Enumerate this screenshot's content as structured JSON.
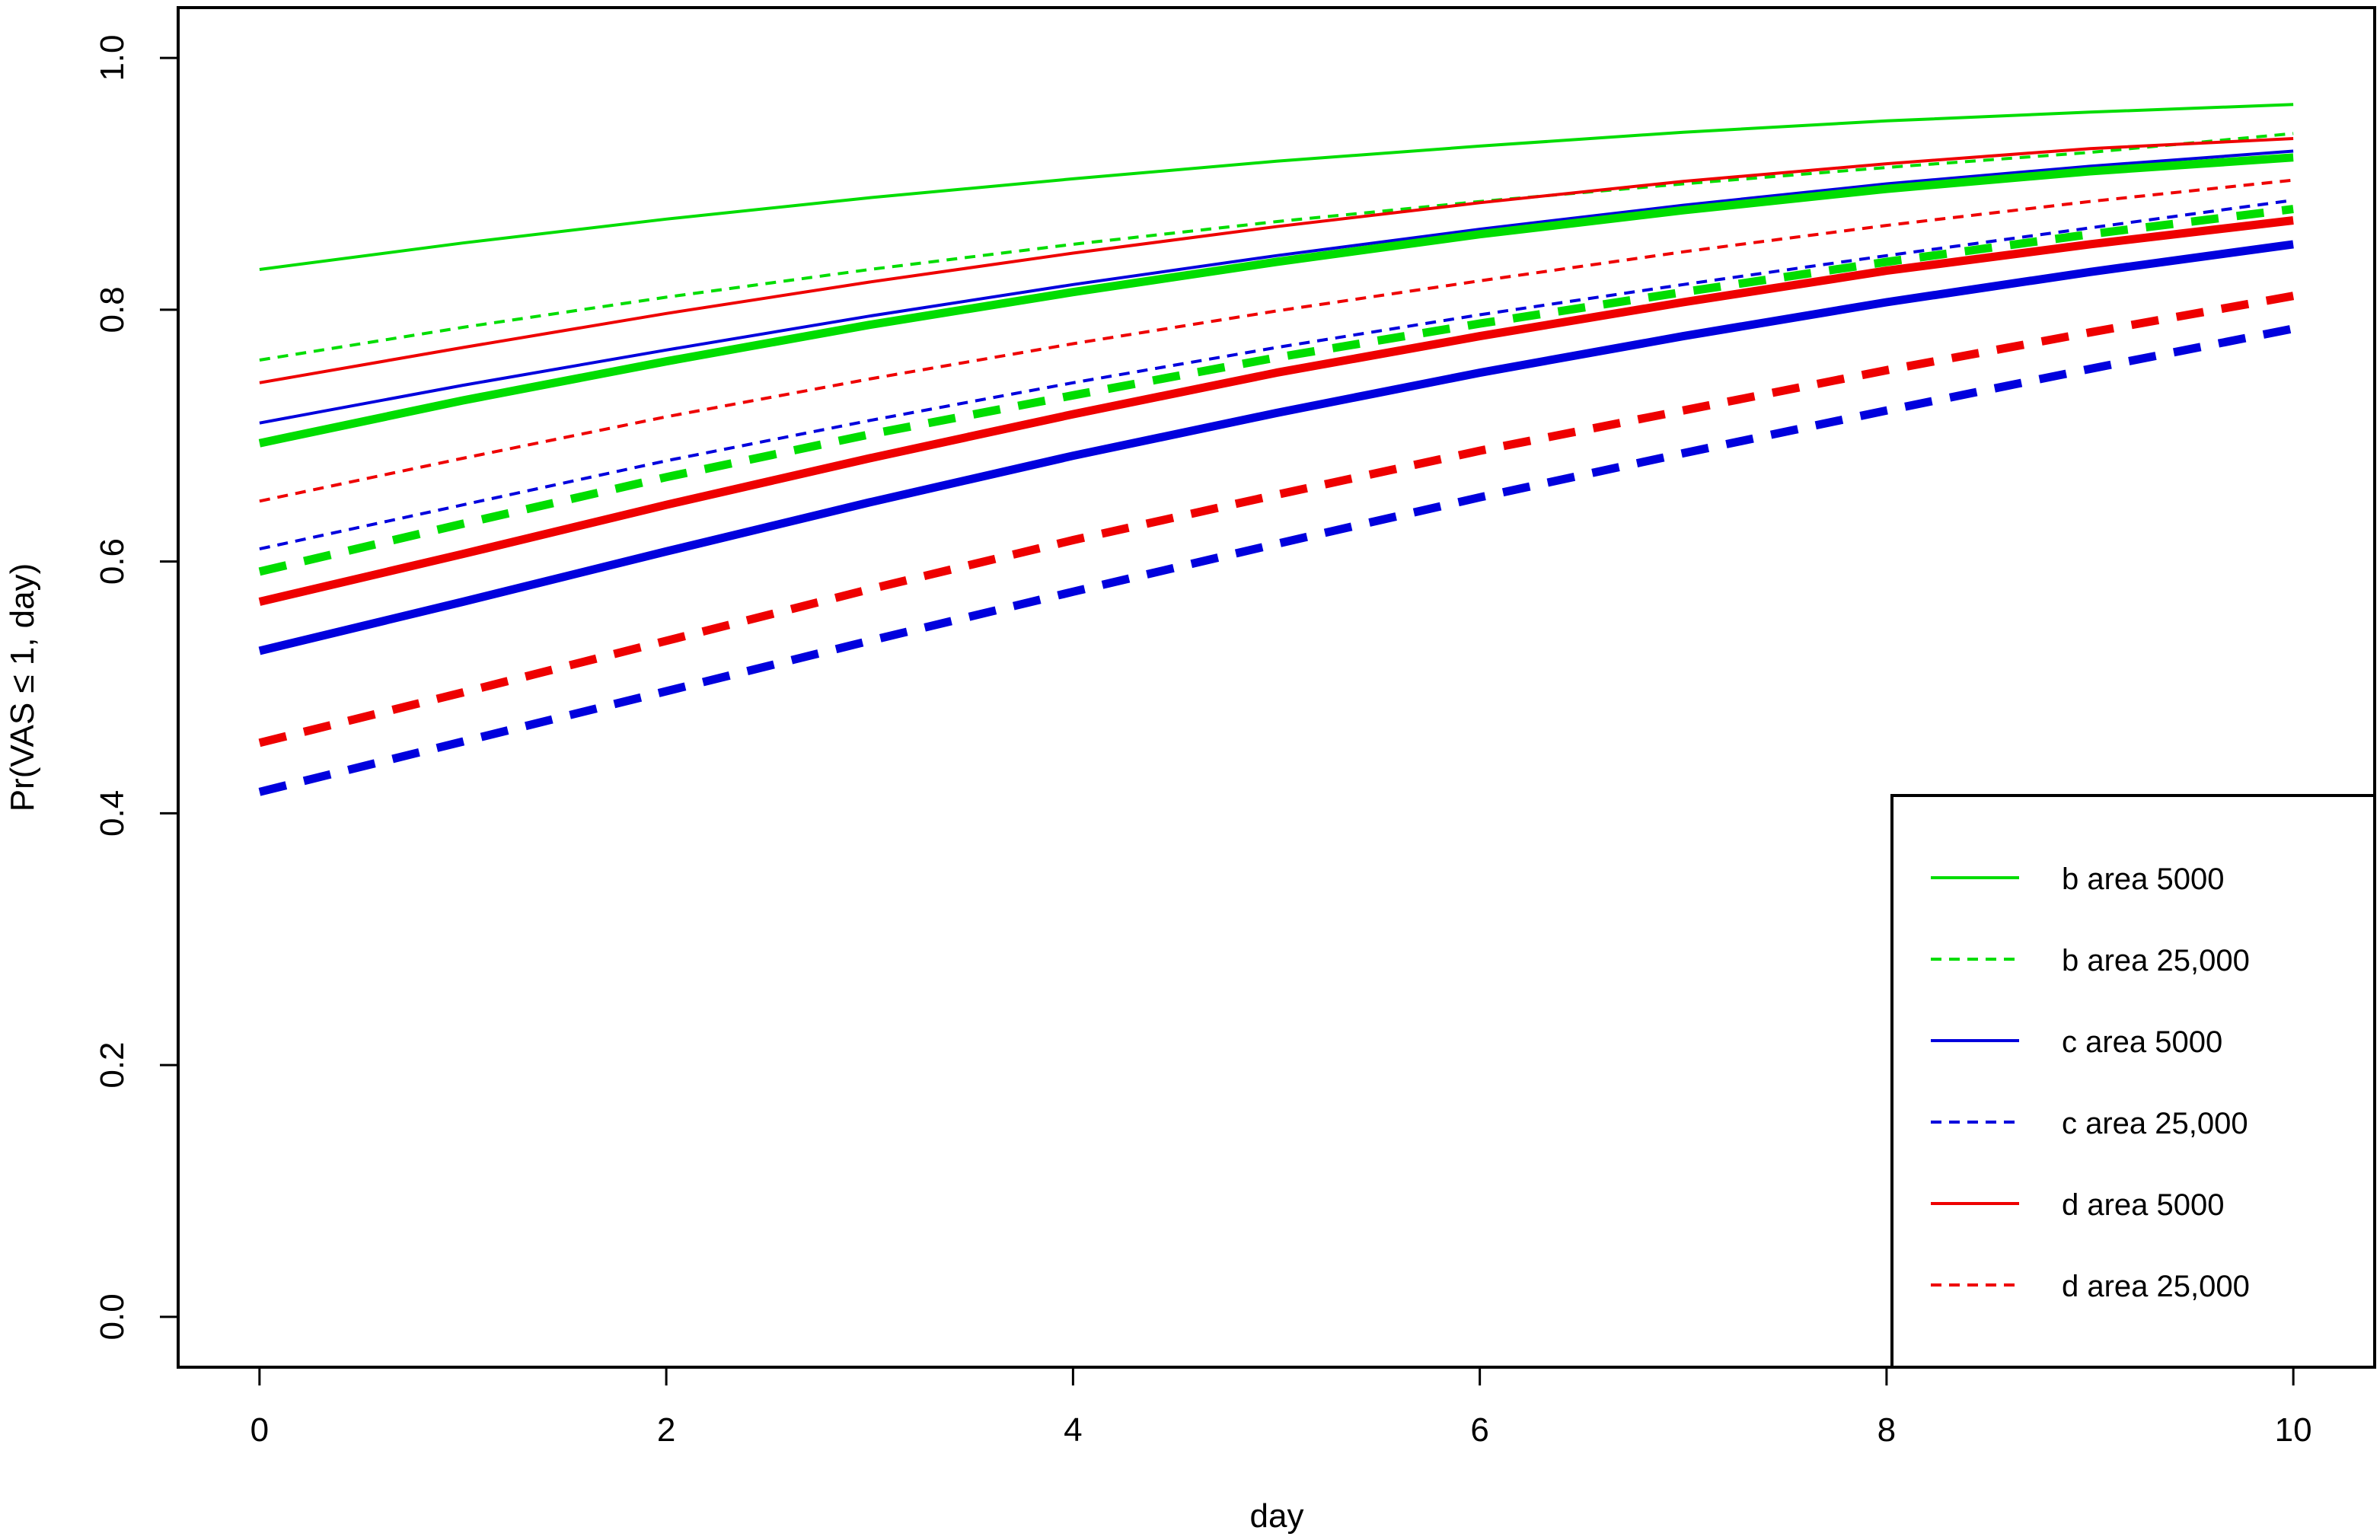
{
  "chart_data": {
    "type": "line",
    "title": "",
    "xlabel": "day",
    "ylabel": "Pr(VAS ≤ 1, day)",
    "xlim": [
      -0.4,
      10.4
    ],
    "ylim": [
      -0.04,
      1.04
    ],
    "x_ticks": [
      0,
      2,
      4,
      6,
      8,
      10
    ],
    "x_tick_labels": [
      "0",
      "2",
      "4",
      "6",
      "8",
      "10"
    ],
    "y_ticks": [
      0.0,
      0.2,
      0.4,
      0.6,
      0.8,
      1.0
    ],
    "y_tick_labels": [
      "0.0",
      "0.2",
      "0.4",
      "0.6",
      "0.8",
      "1.0"
    ],
    "grid": false,
    "legend_position": "bottom-right",
    "x": [
      0,
      1,
      2,
      3,
      4,
      5,
      6,
      7,
      8,
      9,
      10
    ],
    "legend": [
      {
        "label": "b area 5000",
        "color": "#00dd00",
        "dash": "solid"
      },
      {
        "label": "b area 25,000",
        "color": "#00dd00",
        "dash": "dashed"
      },
      {
        "label": "c area 5000",
        "color": "#0000dd",
        "dash": "solid"
      },
      {
        "label": "c area 25,000",
        "color": "#0000dd",
        "dash": "dashed"
      },
      {
        "label": "d area 5000",
        "color": "#ee0000",
        "dash": "solid"
      },
      {
        "label": "d area 25,000",
        "color": "#ee0000",
        "dash": "dashed"
      }
    ],
    "series": [
      {
        "color": "#00dd00",
        "dash": "solid",
        "weight": "thin",
        "values": [
          0.832,
          0.853,
          0.872,
          0.889,
          0.904,
          0.918,
          0.93,
          0.941,
          0.95,
          0.957,
          0.963
        ]
      },
      {
        "color": "#00dd00",
        "dash": "dashed",
        "weight": "thin",
        "values": [
          0.76,
          0.786,
          0.81,
          0.832,
          0.852,
          0.87,
          0.886,
          0.9,
          0.913,
          0.925,
          0.94
        ]
      },
      {
        "color": "#0000dd",
        "dash": "solid",
        "weight": "thin",
        "values": [
          0.71,
          0.74,
          0.768,
          0.795,
          0.82,
          0.843,
          0.864,
          0.883,
          0.9,
          0.914,
          0.926
        ]
      },
      {
        "color": "#0000dd",
        "dash": "dashed",
        "weight": "thin",
        "values": [
          0.61,
          0.645,
          0.68,
          0.712,
          0.742,
          0.77,
          0.796,
          0.82,
          0.843,
          0.865,
          0.887
        ]
      },
      {
        "color": "#ee0000",
        "dash": "solid",
        "weight": "thin",
        "values": [
          0.742,
          0.77,
          0.797,
          0.822,
          0.845,
          0.866,
          0.885,
          0.902,
          0.916,
          0.928,
          0.936
        ]
      },
      {
        "color": "#ee0000",
        "dash": "dashed",
        "weight": "thin",
        "values": [
          0.648,
          0.682,
          0.715,
          0.745,
          0.773,
          0.799,
          0.823,
          0.846,
          0.867,
          0.886,
          0.903
        ]
      },
      {
        "color": "#00dd00",
        "dash": "solid",
        "weight": "thick",
        "values": [
          0.694,
          0.728,
          0.759,
          0.788,
          0.814,
          0.838,
          0.86,
          0.879,
          0.896,
          0.91,
          0.921
        ]
      },
      {
        "color": "#00dd00",
        "dash": "dashed",
        "weight": "thick",
        "values": [
          0.592,
          0.63,
          0.667,
          0.701,
          0.732,
          0.762,
          0.789,
          0.814,
          0.838,
          0.86,
          0.88
        ]
      },
      {
        "color": "#ee0000",
        "dash": "solid",
        "weight": "thick",
        "values": [
          0.568,
          0.606,
          0.645,
          0.682,
          0.717,
          0.75,
          0.779,
          0.806,
          0.831,
          0.852,
          0.871
        ]
      },
      {
        "color": "#0000dd",
        "dash": "solid",
        "weight": "thick",
        "values": [
          0.529,
          0.568,
          0.608,
          0.647,
          0.684,
          0.718,
          0.75,
          0.779,
          0.806,
          0.83,
          0.852
        ]
      },
      {
        "color": "#ee0000",
        "dash": "dashed",
        "weight": "thick",
        "values": [
          0.456,
          0.496,
          0.537,
          0.578,
          0.617,
          0.653,
          0.688,
          0.72,
          0.752,
          0.782,
          0.811
        ]
      },
      {
        "color": "#0000dd",
        "dash": "dashed",
        "weight": "thick",
        "values": [
          0.417,
          0.457,
          0.497,
          0.537,
          0.576,
          0.614,
          0.651,
          0.686,
          0.72,
          0.753,
          0.785
        ]
      }
    ]
  }
}
